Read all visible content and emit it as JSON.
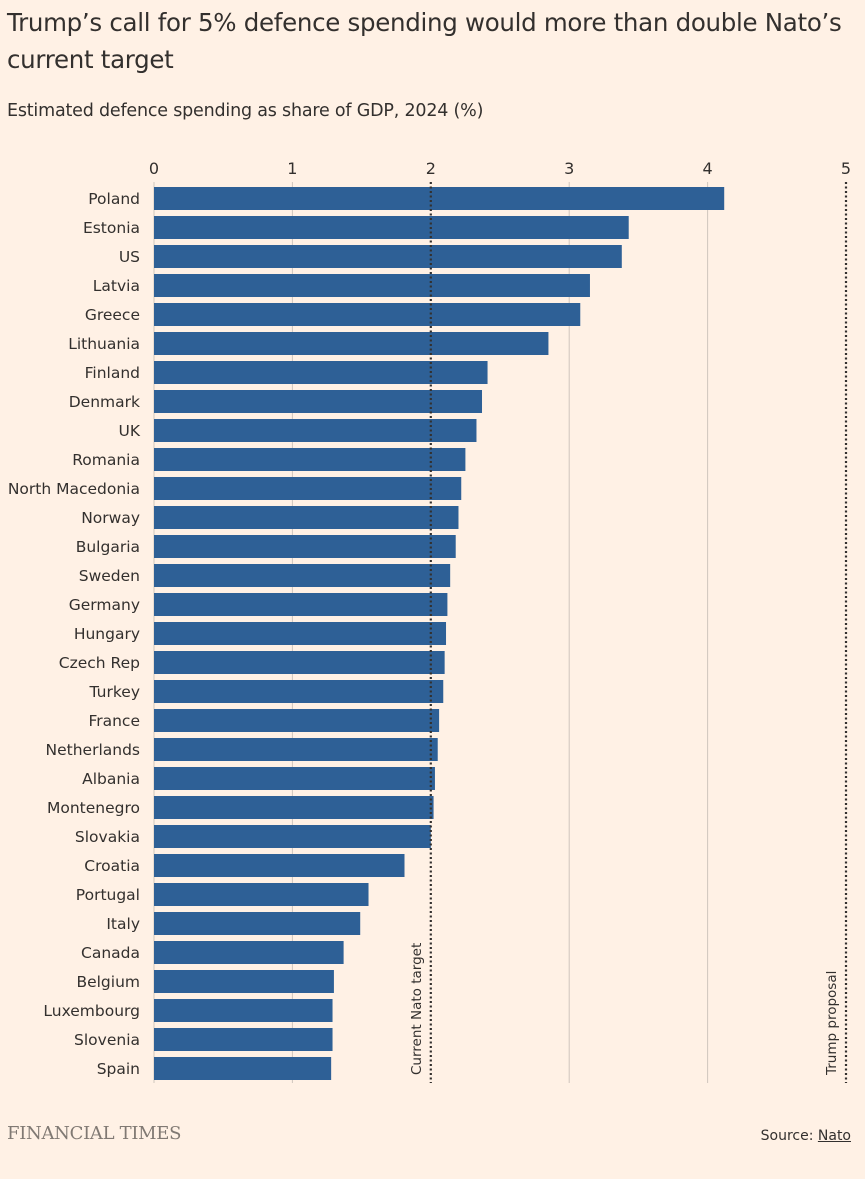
{
  "title": "Trump’s call for 5% defence spending would more than double Nato’s current target",
  "subtitle": "Estimated defence spending as share of GDP, 2024 (%)",
  "chart_data": {
    "type": "bar",
    "orientation": "horizontal",
    "xlim": [
      0,
      5
    ],
    "ticks": [
      "0",
      "1",
      "2",
      "3",
      "4",
      "5"
    ],
    "grid": true,
    "bar_color": "#2e6096",
    "categories": [
      "Poland",
      "Estonia",
      "US",
      "Latvia",
      "Greece",
      "Lithuania",
      "Finland",
      "Denmark",
      "UK",
      "Romania",
      "North Macedonia",
      "Norway",
      "Bulgaria",
      "Sweden",
      "Germany",
      "Hungary",
      "Czech Rep",
      "Turkey",
      "France",
      "Netherlands",
      "Albania",
      "Montenegro",
      "Slovakia",
      "Croatia",
      "Portugal",
      "Italy",
      "Canada",
      "Belgium",
      "Luxembourg",
      "Slovenia",
      "Spain"
    ],
    "values": [
      4.12,
      3.43,
      3.38,
      3.15,
      3.08,
      2.85,
      2.41,
      2.37,
      2.33,
      2.25,
      2.22,
      2.2,
      2.18,
      2.14,
      2.12,
      2.11,
      2.1,
      2.09,
      2.06,
      2.05,
      2.03,
      2.02,
      2.0,
      1.81,
      1.55,
      1.49,
      1.37,
      1.3,
      1.29,
      1.29,
      1.28
    ],
    "reference_lines": [
      {
        "value": 2,
        "label": "Current Nato target"
      },
      {
        "value": 5,
        "label": "Trump proposal"
      }
    ]
  },
  "footer": {
    "logo": "FINANCIAL TIMES",
    "source_prefix": "Source: ",
    "source_link": "Nato"
  }
}
